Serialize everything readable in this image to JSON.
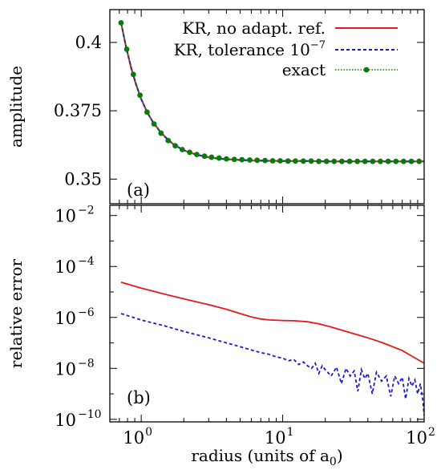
{
  "chart_data": [
    {
      "type": "line",
      "panel_tag": "(a)",
      "ylabel": "amplitude",
      "xscale": "log",
      "xlim": [
        0.6,
        100
      ],
      "ylim": [
        0.341,
        0.412
      ],
      "yticks": [
        {
          "value": 0.35,
          "label": "0.35"
        },
        {
          "value": 0.375,
          "label": "0.375"
        },
        {
          "value": 0.4,
          "label": "0.4"
        }
      ],
      "legend_position": "top-right",
      "series": [
        {
          "name": "KR, no adapt. ref.",
          "color": "#e41a1c",
          "style": "solid",
          "x": [
            0.72,
            0.78,
            0.85,
            0.92,
            1.0,
            1.1,
            1.2,
            1.35,
            1.5,
            1.7,
            2.0,
            2.4,
            2.9,
            3.5,
            4.2,
            5.0,
            6.0,
            8.0,
            10,
            15,
            20,
            30,
            50,
            70,
            100
          ],
          "y": [
            0.4072,
            0.3985,
            0.3905,
            0.3845,
            0.3793,
            0.3745,
            0.3712,
            0.3676,
            0.3651,
            0.3626,
            0.3605,
            0.3591,
            0.3581,
            0.3575,
            0.3572,
            0.357,
            0.3568,
            0.3567,
            0.3566,
            0.3566,
            0.3565,
            0.3565,
            0.3565,
            0.3565,
            0.3565
          ]
        },
        {
          "name": "KR, tolerance 10",
          "name_sup": "−7",
          "color": "#1a1acd",
          "style": "dashed",
          "x": [
            0.72,
            0.78,
            0.85,
            0.92,
            1.0,
            1.1,
            1.2,
            1.35,
            1.5,
            1.7,
            2.0,
            2.4,
            2.9,
            3.5,
            4.2,
            5.0,
            6.0,
            8.0,
            10,
            15,
            20,
            30,
            50,
            70,
            100
          ],
          "y": [
            0.4072,
            0.3985,
            0.3905,
            0.3845,
            0.3793,
            0.3745,
            0.3712,
            0.3676,
            0.3651,
            0.3626,
            0.3605,
            0.3591,
            0.3581,
            0.3575,
            0.3572,
            0.357,
            0.3568,
            0.3567,
            0.3566,
            0.3566,
            0.3565,
            0.3565,
            0.3565,
            0.3565,
            0.3565
          ]
        },
        {
          "name": "exact",
          "color": "#0a7a0a",
          "style": "dotted-markers",
          "x": [
            0.72,
            0.79,
            0.88,
            0.98,
            1.1,
            1.23,
            1.38,
            1.55,
            1.74,
            1.95,
            2.2,
            2.47,
            2.8,
            3.14,
            3.55,
            4.0,
            4.55,
            5.15,
            5.85,
            6.6,
            7.5,
            8.5,
            9.6,
            10.9,
            12.3,
            14.0,
            15.9,
            18.0,
            20.4,
            23.1,
            26.2,
            29.7,
            33.7,
            38.2,
            43.3,
            49.1,
            55.7,
            63.1,
            71.6,
            81.2,
            92.1
          ],
          "y": [
            0.4072,
            0.3975,
            0.3883,
            0.3807,
            0.3745,
            0.3702,
            0.3668,
            0.3641,
            0.3622,
            0.3608,
            0.3598,
            0.359,
            0.3584,
            0.358,
            0.3577,
            0.3574,
            0.3572,
            0.3571,
            0.357,
            0.3569,
            0.3568,
            0.3567,
            0.3567,
            0.3566,
            0.3566,
            0.3566,
            0.3566,
            0.3565,
            0.3565,
            0.3565,
            0.3565,
            0.3565,
            0.3565,
            0.3565,
            0.3565,
            0.3565,
            0.3565,
            0.3565,
            0.3565,
            0.3565,
            0.3565
          ]
        }
      ]
    },
    {
      "type": "line",
      "panel_tag": "(b)",
      "ylabel": "relative error",
      "xlabel": "radius (units of a",
      "xlabel_sub": "0",
      "xlabel_close": ")",
      "xscale": "log",
      "yscale": "log",
      "xlim": [
        0.6,
        100
      ],
      "ylim_log10": [
        -10.1,
        -1.6
      ],
      "xticks": [
        {
          "value": 1,
          "base": "10",
          "exp": "0"
        },
        {
          "value": 10,
          "base": "10",
          "exp": "1"
        },
        {
          "value": 100,
          "base": "10",
          "exp": "2"
        }
      ],
      "yticks": [
        {
          "exp_value": -10,
          "base": "10",
          "exp": "−10"
        },
        {
          "exp_value": -8,
          "base": "10",
          "exp": "−8"
        },
        {
          "exp_value": -6,
          "base": "10",
          "exp": "−6"
        },
        {
          "exp_value": -4,
          "base": "10",
          "exp": "−4"
        },
        {
          "exp_value": -2,
          "base": "10",
          "exp": "−2"
        }
      ],
      "series": [
        {
          "name": "KR, no adapt. ref.",
          "color": "#e41a1c",
          "style": "solid",
          "x": [
            0.72,
            1.0,
            1.5,
            2.0,
            3.0,
            4.0,
            5.0,
            6.0,
            7.0,
            8.0,
            10,
            12,
            15,
            18,
            22,
            30,
            40,
            50,
            70,
            100
          ],
          "log10_y": [
            -4.62,
            -4.85,
            -5.1,
            -5.27,
            -5.5,
            -5.68,
            -5.85,
            -5.98,
            -6.06,
            -6.1,
            -6.12,
            -6.13,
            -6.17,
            -6.25,
            -6.38,
            -6.6,
            -6.8,
            -6.98,
            -7.3,
            -7.8
          ]
        },
        {
          "name": "KR, tolerance 10",
          "name_sup": "−7",
          "color": "#1a1acd",
          "style": "dashed",
          "x": [
            0.72,
            1.0,
            1.5,
            2.0,
            3.0,
            4.0,
            5.0,
            6.0,
            7.0,
            8.0,
            9.0,
            10,
            11,
            12,
            13,
            14,
            15,
            16,
            17,
            18,
            19,
            20,
            22,
            24,
            26,
            28,
            30,
            32,
            34,
            36,
            38,
            40,
            43,
            46,
            50,
            54,
            58,
            62,
            66,
            70,
            74,
            78,
            82,
            86,
            90,
            94,
            98,
            100
          ],
          "log10_y": [
            -5.85,
            -6.1,
            -6.35,
            -6.55,
            -6.8,
            -7.0,
            -7.15,
            -7.28,
            -7.38,
            -7.45,
            -7.55,
            -7.6,
            -7.7,
            -7.65,
            -7.85,
            -7.75,
            -7.9,
            -8.0,
            -7.8,
            -8.2,
            -7.9,
            -8.05,
            -8.3,
            -7.95,
            -8.6,
            -8.0,
            -8.3,
            -8.1,
            -8.9,
            -8.05,
            -8.4,
            -8.2,
            -9.0,
            -8.15,
            -8.5,
            -8.3,
            -9.1,
            -8.3,
            -8.6,
            -8.35,
            -9.2,
            -8.4,
            -8.7,
            -8.45,
            -9.0,
            -8.6,
            -9.3,
            -9.85
          ]
        }
      ]
    }
  ]
}
